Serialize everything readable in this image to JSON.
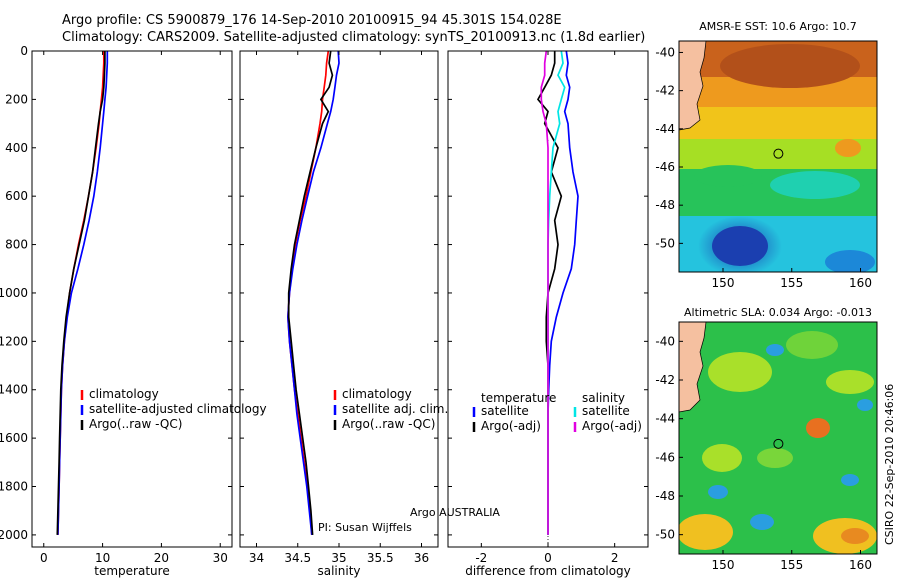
{
  "header": {
    "line1": "Argo profile: CS 5900879_176 14-Sep-2010 20100915_94 45.301S 154.028E",
    "line2": "Climatology: CARS2009. Satellite-adjusted climatology: synTS_20100913.nc (1.8d earlier)"
  },
  "credits": {
    "program": "Argo AUSTRALIA",
    "pi": "PI: Susan Wijffels",
    "stamp": "CSIRO 22-Sep-2010 20:46:06"
  },
  "colors": {
    "climatology": "#ff0000",
    "satellite": "#0000ff",
    "argo": "#000000",
    "sal_satellite": "#00e5e5",
    "sal_argo": "#e000e0"
  },
  "chart_data": [
    {
      "type": "line",
      "panel": "temperature",
      "xlabel": "temperature",
      "ylabel": "",
      "xlim": [
        -2,
        32
      ],
      "ylim": [
        2050,
        0
      ],
      "xticks": [
        "0",
        "10",
        "20",
        "30"
      ],
      "yticks": [
        "0",
        "200",
        "400",
        "600",
        "800",
        "1000",
        "1200",
        "1400",
        "1600",
        "1800",
        "2000"
      ],
      "legend": [
        "climatology",
        "satellite-adjusted climatology",
        "Argo(..raw -QC)"
      ],
      "depth": [
        0,
        50,
        100,
        150,
        200,
        250,
        300,
        400,
        500,
        600,
        700,
        800,
        900,
        1000,
        1100,
        1200,
        1300,
        1400,
        1500,
        1600,
        1700,
        1800,
        1900,
        2000
      ],
      "series": [
        {
          "name": "climatology",
          "values": [
            10.2,
            10.2,
            10.1,
            10.0,
            9.8,
            9.6,
            9.4,
            8.9,
            8.3,
            7.6,
            6.8,
            5.9,
            5.1,
            4.4,
            3.9,
            3.5,
            3.2,
            3.0,
            2.9,
            2.8,
            2.7,
            2.6,
            2.5,
            2.4
          ]
        },
        {
          "name": "satellite-adjusted climatology",
          "values": [
            10.8,
            10.8,
            10.7,
            10.6,
            10.4,
            10.2,
            10.0,
            9.6,
            9.1,
            8.5,
            7.7,
            6.8,
            5.8,
            4.7,
            4.0,
            3.5,
            3.2,
            3.0,
            2.9,
            2.8,
            2.7,
            2.6,
            2.5,
            2.4
          ]
        },
        {
          "name": "Argo(..raw -QC)",
          "values": [
            10.4,
            10.4,
            10.3,
            10.2,
            10.0,
            9.6,
            9.3,
            8.8,
            8.3,
            7.6,
            6.9,
            6.0,
            5.1,
            4.4,
            3.8,
            3.4,
            3.1,
            2.9,
            2.8,
            2.7,
            2.6,
            2.5,
            2.4,
            2.3
          ]
        }
      ]
    },
    {
      "type": "line",
      "panel": "salinity",
      "xlabel": "salinity",
      "ylabel": "",
      "xlim": [
        33.8,
        36.2
      ],
      "ylim": [
        2050,
        0
      ],
      "xticks": [
        "34",
        "34.5",
        "35",
        "35.5",
        "36"
      ],
      "legend": [
        "climatology",
        "satellite adj. clim.",
        "Argo(..raw -QC)"
      ],
      "depth": [
        0,
        50,
        100,
        150,
        200,
        250,
        300,
        400,
        500,
        600,
        700,
        800,
        900,
        1000,
        1100,
        1200,
        1300,
        1400,
        1500,
        1600,
        1700,
        1800,
        1900,
        2000
      ],
      "series": [
        {
          "name": "climatology",
          "values": [
            34.87,
            34.85,
            34.84,
            34.82,
            34.8,
            34.79,
            34.77,
            34.72,
            34.66,
            34.6,
            34.53,
            34.47,
            34.43,
            34.4,
            34.38,
            34.4,
            34.43,
            34.46,
            34.5,
            34.54,
            34.58,
            34.62,
            34.65,
            34.67
          ]
        },
        {
          "name": "satellite adj. clim.",
          "values": [
            34.99,
            35.0,
            34.97,
            34.95,
            34.93,
            34.9,
            34.86,
            34.78,
            34.69,
            34.62,
            34.55,
            34.49,
            34.44,
            34.4,
            34.38,
            34.4,
            34.43,
            34.46,
            34.49,
            34.53,
            34.57,
            34.61,
            34.64,
            34.67
          ]
        },
        {
          "name": "Argo(..raw -QC)",
          "values": [
            34.9,
            34.88,
            34.92,
            34.88,
            34.78,
            34.87,
            34.8,
            34.72,
            34.65,
            34.58,
            34.52,
            34.46,
            34.42,
            34.39,
            34.39,
            34.42,
            34.45,
            34.48,
            34.52,
            34.56,
            34.6,
            34.63,
            34.66,
            34.68
          ]
        }
      ]
    },
    {
      "type": "line",
      "panel": "difference",
      "xlabel": "difference from climatology",
      "ylabel": "",
      "xlim": [
        -3.0,
        3.0
      ],
      "ylim": [
        2050,
        0
      ],
      "xticks": [
        "-2",
        "0",
        "2"
      ],
      "legend_headers": [
        "temperature",
        "salinity"
      ],
      "legend": [
        "satellite",
        "Argo(-adj)",
        "satellite",
        "Argo(-adj)"
      ],
      "depth": [
        0,
        50,
        100,
        150,
        200,
        250,
        300,
        400,
        500,
        600,
        700,
        800,
        900,
        1000,
        1100,
        1200,
        1300,
        1400,
        1500,
        1600,
        1700,
        1800,
        1900,
        2000
      ],
      "series": [
        {
          "name": "temperature satellite",
          "values": [
            0.55,
            0.6,
            0.55,
            0.65,
            0.6,
            0.5,
            0.6,
            0.65,
            0.75,
            0.9,
            0.85,
            0.8,
            0.7,
            0.45,
            0.25,
            0.1,
            0.05,
            0.02,
            0.0,
            0.0,
            0.0,
            0.0,
            0.0,
            0.0
          ]
        },
        {
          "name": "temperature Argo(-adj)",
          "values": [
            0.2,
            0.2,
            0.1,
            -0.1,
            -0.3,
            0.0,
            -0.1,
            0.3,
            0.1,
            0.4,
            0.2,
            0.3,
            0.2,
            0.0,
            -0.05,
            -0.05,
            0.0,
            0.0,
            0.0,
            0.0,
            0.0,
            0.0,
            0.0,
            0.0
          ]
        },
        {
          "name": "salinity satellite",
          "values": [
            0.4,
            0.45,
            0.3,
            0.5,
            0.4,
            0.3,
            0.35,
            0.15,
            0.1,
            0.05,
            0.02,
            0.0,
            0.0,
            0.0,
            0.0,
            0.0,
            0.0,
            0.0,
            0.0,
            0.0,
            0.0,
            0.0,
            0.0,
            0.0
          ]
        },
        {
          "name": "salinity Argo(-adj)",
          "values": [
            -0.05,
            -0.1,
            -0.1,
            -0.2,
            -0.2,
            -0.15,
            -0.05,
            0.0,
            0.0,
            0.0,
            0.0,
            0.0,
            0.0,
            0.0,
            0.0,
            0.0,
            0.0,
            0.0,
            0.0,
            0.0,
            0.0,
            0.0,
            0.0,
            0.0
          ]
        }
      ]
    },
    {
      "type": "heatmap",
      "panel": "sst-map",
      "title": "AMSR-E SST: 10.6 Argo: 10.7",
      "xlim": [
        146.8,
        161.2
      ],
      "ylim": [
        -51.5,
        -39.4
      ],
      "xticks": [
        "150",
        "155",
        "160"
      ],
      "yticks": [
        "-40",
        "-42",
        "-44",
        "-46",
        "-48",
        "-50"
      ],
      "profile_location": {
        "lon": 154.028,
        "lat": -45.301
      }
    },
    {
      "type": "heatmap",
      "panel": "sla-map",
      "title": "Altimetric SLA: 0.034 Argo: -0.013",
      "xlim": [
        146.8,
        161.2
      ],
      "ylim": [
        -51.0,
        -39.0
      ],
      "xticks": [
        "150",
        "155",
        "160"
      ],
      "yticks": [
        "-40",
        "-42",
        "-44",
        "-46",
        "-48",
        "-50"
      ],
      "profile_location": {
        "lon": 154.028,
        "lat": -45.301
      }
    }
  ]
}
